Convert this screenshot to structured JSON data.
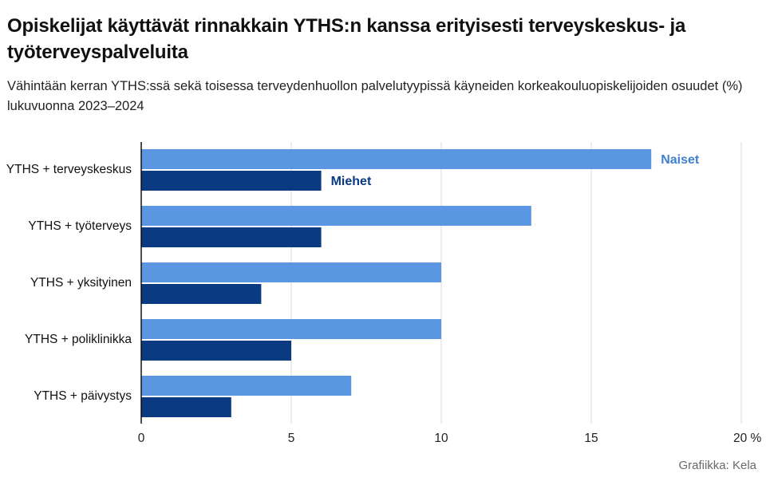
{
  "title": "Opiskelijat käyttävät rinnakkain YTHS:n kanssa erityisesti terveyskeskus- ja työterveyspalveluita",
  "subtitle": "Vähintään kerran YTHS:ssä sekä toisessa terveydenhuollon palvelutyypissä käyneiden korkeakouluopiskelijoiden osuudet (%) lukuvuonna 2023–2024",
  "source": "Grafiikka: Kela",
  "colors": {
    "naiset": "#5B96E3",
    "miehet": "#0A3A82",
    "naiset_label": "#3F7FCF",
    "miehet_label": "#0A3A82",
    "grid": "#D9D9D9",
    "axis": "#111111"
  },
  "chart_data": {
    "type": "bar",
    "orientation": "horizontal",
    "categories": [
      "YTHS + terveyskeskus",
      "YTHS + työterveys",
      "YTHS + yksityinen",
      "YTHS + poliklinikka",
      "YTHS + päivystys"
    ],
    "series": [
      {
        "name": "Naiset",
        "values": [
          17,
          13,
          10,
          10,
          7
        ]
      },
      {
        "name": "Miehet",
        "values": [
          6,
          6,
          4,
          5,
          3
        ]
      }
    ],
    "x_ticks": [
      "0",
      "5",
      "10",
      "15",
      "20 %"
    ],
    "x_tick_values": [
      0,
      5,
      10,
      15,
      20
    ],
    "xlim": [
      0,
      20
    ],
    "grid": true,
    "legend": "direct labels on first category bars"
  }
}
